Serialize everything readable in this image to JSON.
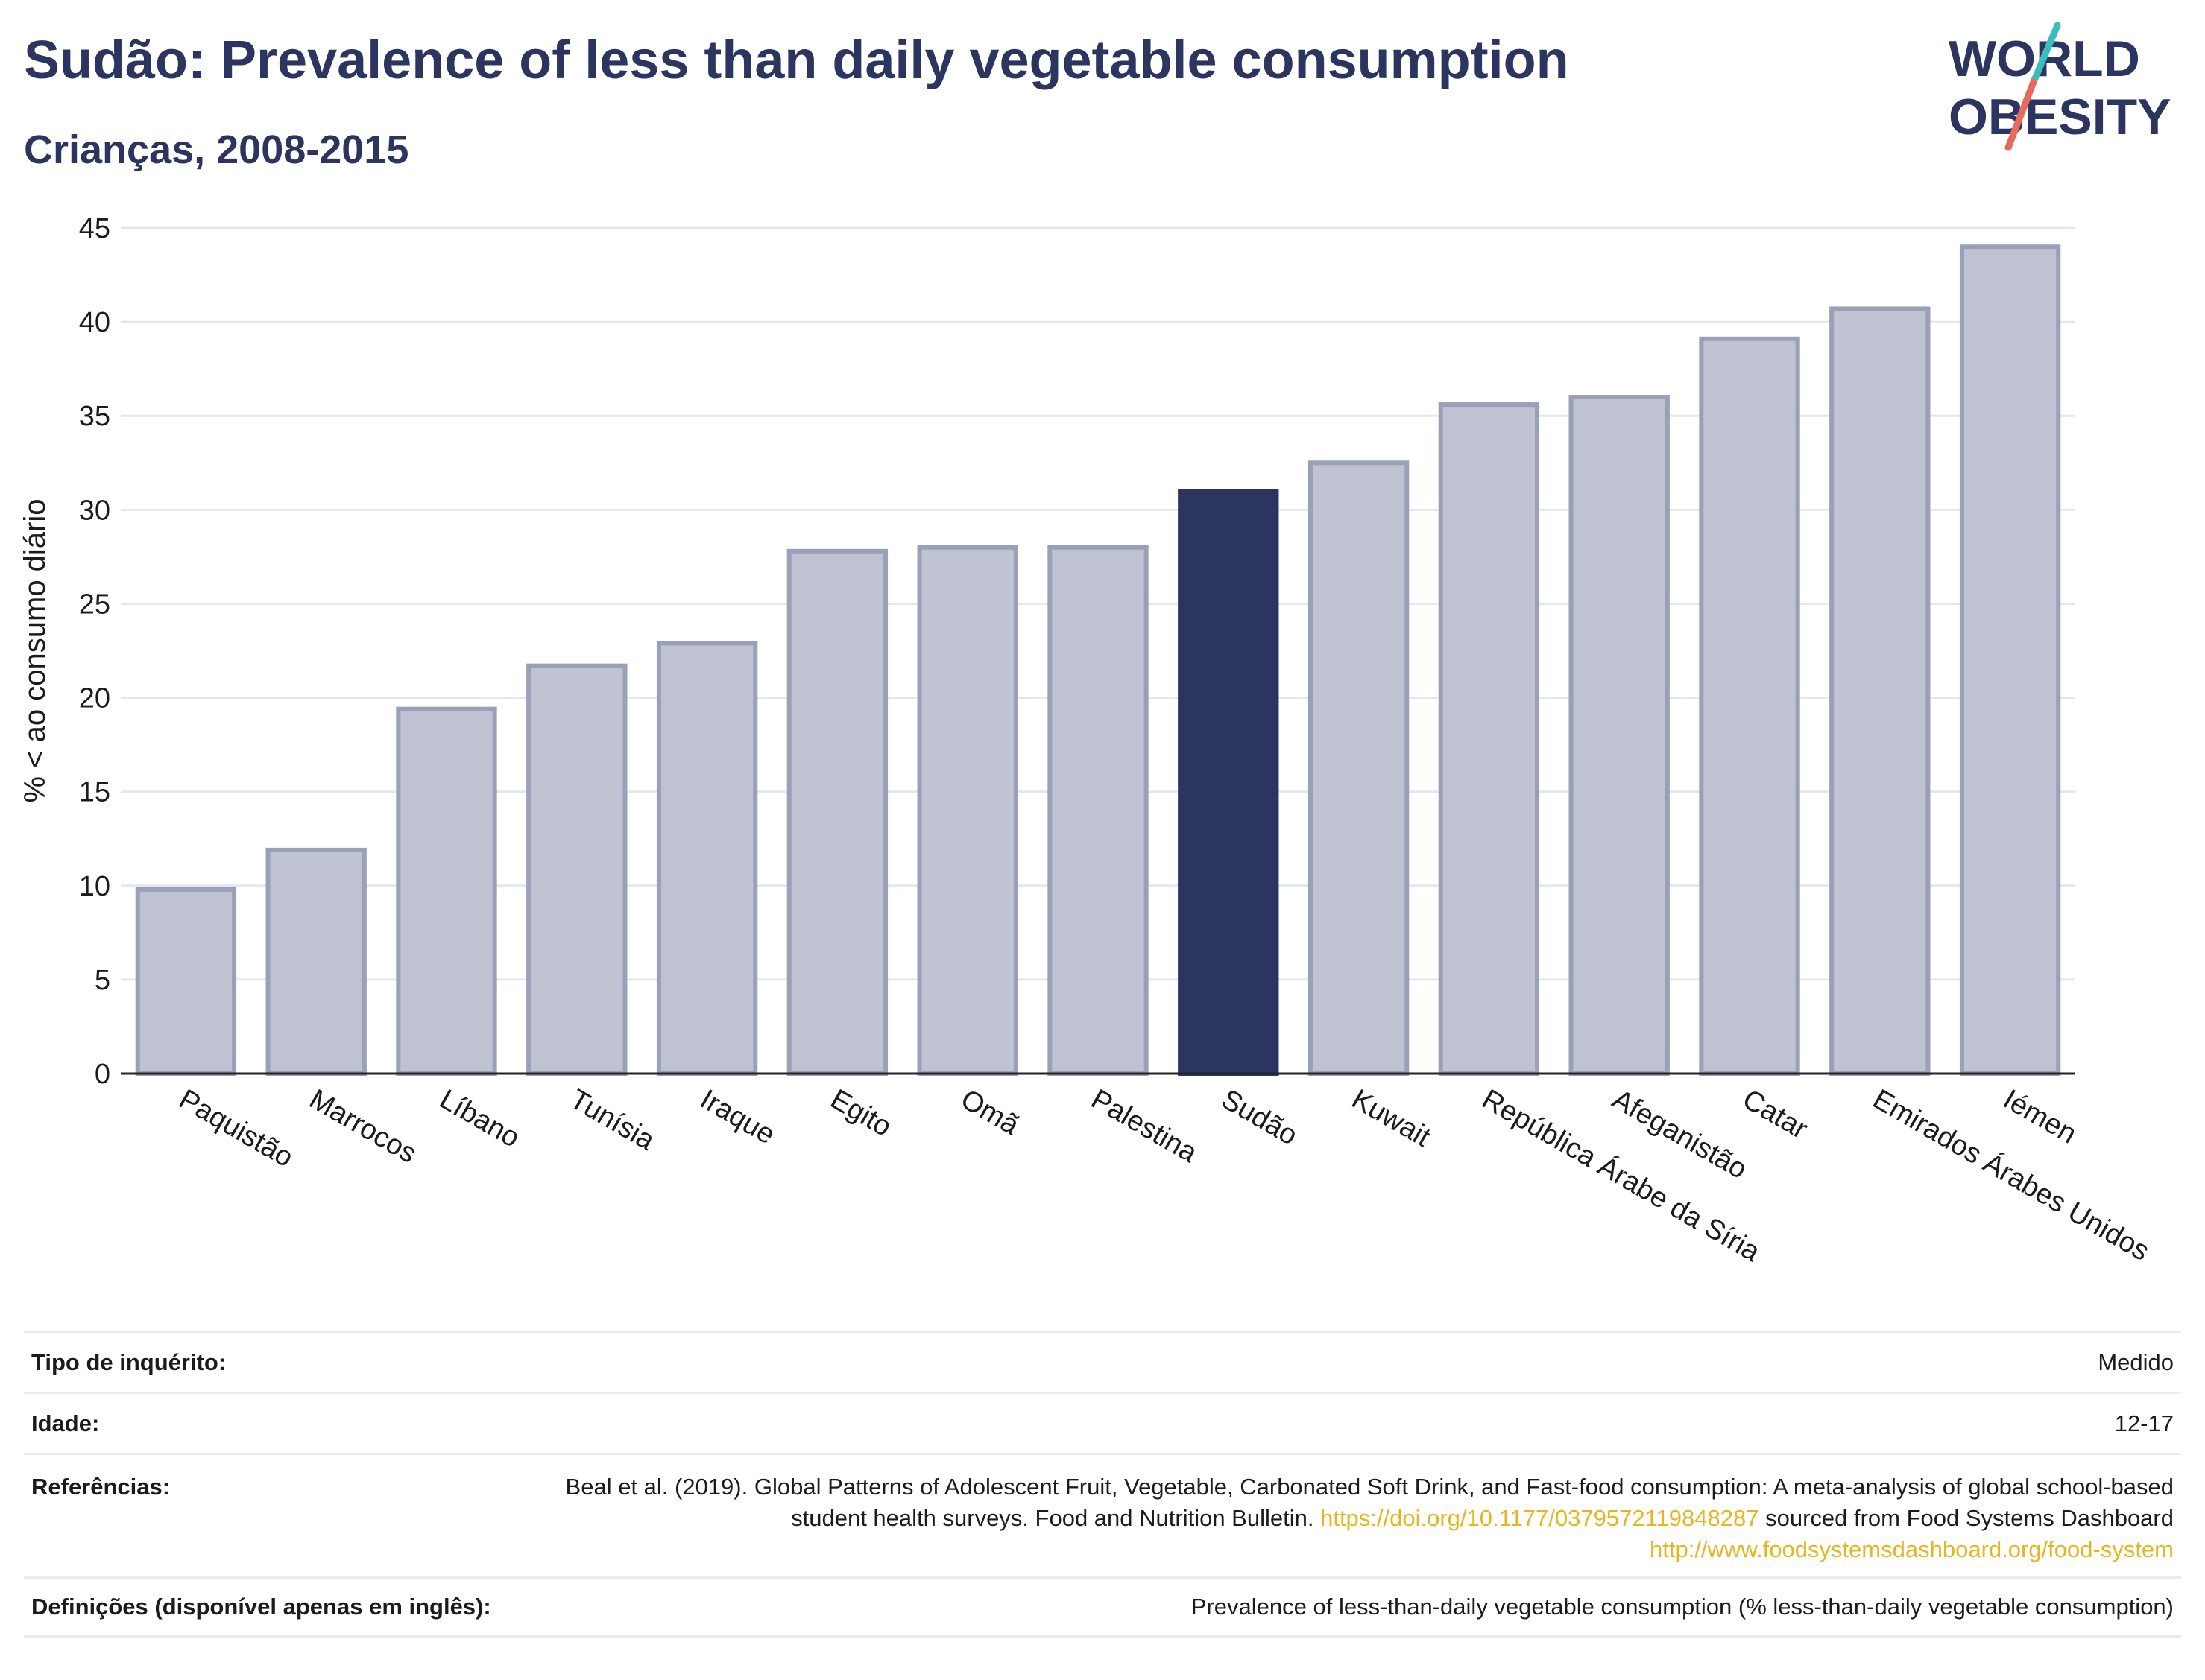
{
  "header": {
    "title": "Sudão: Prevalence of less than daily vegetable consumption",
    "subtitle": "Crianças, 2008-2015"
  },
  "logo": {
    "line1": "WORLD",
    "line2": "OBESITY",
    "accent_teal": "#3bbdc0",
    "accent_coral": "#e86a5c",
    "color": "#2b3560"
  },
  "colors": {
    "highlight": "#2b3560",
    "bar_fill": "#bfc2d0",
    "bar_stroke": "#9aa0b8",
    "grid": "#e4e8ee"
  },
  "chart_data": {
    "type": "bar",
    "title": "Sudão: Prevalence of less than daily vegetable consumption",
    "subtitle": "Crianças, 2008-2015",
    "ylabel": "% < ao consumo diário",
    "xlabel": "",
    "ylim": [
      0,
      45
    ],
    "yticks": [
      0,
      5,
      10,
      15,
      20,
      25,
      30,
      35,
      40,
      45
    ],
    "grid": true,
    "highlight": "Sudão",
    "categories": [
      "Paquistão",
      "Marrocos",
      "Líbano",
      "Tunísia",
      "Iraque",
      "Egito",
      "Omã",
      "Palestina",
      "Sudão",
      "Kuwait",
      "República Árabe da Síria",
      "Afeganistão",
      "Catar",
      "Emirados Árabes Unidos",
      "Iémen"
    ],
    "values": [
      9.8,
      11.9,
      19.4,
      21.7,
      22.9,
      27.8,
      28.0,
      28.0,
      31.0,
      32.5,
      35.6,
      36.0,
      39.1,
      40.7,
      44.0
    ]
  },
  "footer": {
    "survey_label": "Tipo de inquérito:",
    "survey_value": "Medido",
    "age_label": "Idade:",
    "age_value": "12-17",
    "references_label": "Referências:",
    "references_text_1": "Beal et al. (2019). Global Patterns of Adolescent Fruit, Vegetable, Carbonated Soft Drink, and Fast-food consumption: A meta-analysis of global school-based student health surveys. Food and Nutrition Bulletin. ",
    "references_link_1": "https://doi.org/10.1177/0379572119848287",
    "references_text_2": " sourced from Food Systems Dashboard ",
    "references_link_2": "http://www.foodsystemsdashboard.org/food-system",
    "definitions_label": "Definições (disponível apenas em inglês):",
    "definitions_value": "Prevalence of less-than-daily vegetable consumption (% less-than-daily vegetable consumption)"
  }
}
